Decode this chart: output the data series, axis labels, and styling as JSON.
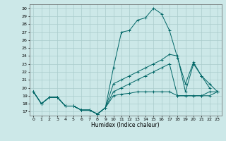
{
  "xlabel": "Humidex (Indice chaleur)",
  "bg_color": "#cce8e8",
  "line_color": "#006666",
  "grid_color": "#aacccc",
  "xlim": [
    -0.5,
    23.5
  ],
  "ylim": [
    16.5,
    30.5
  ],
  "xticks": [
    0,
    1,
    2,
    3,
    4,
    5,
    6,
    7,
    8,
    9,
    10,
    11,
    12,
    13,
    14,
    15,
    16,
    17,
    18,
    19,
    20,
    21,
    22,
    23
  ],
  "yticks": [
    17,
    18,
    19,
    20,
    21,
    22,
    23,
    24,
    25,
    26,
    27,
    28,
    29,
    30
  ],
  "lines": [
    {
      "x": [
        0,
        1,
        2,
        3,
        4,
        5,
        6,
        7,
        8,
        9,
        10,
        11,
        12,
        13,
        14,
        15,
        16,
        17,
        18,
        19,
        20,
        21,
        22
      ],
      "y": [
        19.5,
        18.0,
        18.8,
        18.8,
        17.7,
        17.7,
        17.2,
        17.2,
        16.7,
        17.5,
        22.5,
        27.0,
        27.2,
        28.5,
        28.8,
        30.0,
        29.3,
        27.2,
        23.8,
        20.5,
        23.2,
        21.5,
        20.0
      ]
    },
    {
      "x": [
        0,
        1,
        2,
        3,
        4,
        5,
        6,
        7,
        8,
        9,
        10,
        11,
        12,
        13,
        14,
        15,
        16,
        17,
        18,
        19,
        20,
        21,
        22,
        23
      ],
      "y": [
        19.5,
        18.0,
        18.8,
        18.8,
        17.7,
        17.7,
        17.2,
        17.2,
        16.7,
        17.5,
        20.5,
        21.0,
        21.5,
        22.0,
        22.5,
        23.0,
        23.5,
        24.2,
        24.0,
        19.5,
        23.0,
        21.5,
        20.5,
        19.5
      ]
    },
    {
      "x": [
        0,
        1,
        2,
        3,
        4,
        5,
        6,
        7,
        8,
        9,
        10,
        11,
        12,
        13,
        14,
        15,
        16,
        17,
        18,
        19,
        20,
        21,
        22,
        23
      ],
      "y": [
        19.5,
        18.0,
        18.8,
        18.8,
        17.7,
        17.7,
        17.2,
        17.2,
        16.7,
        17.5,
        19.5,
        20.0,
        20.5,
        21.0,
        21.5,
        22.0,
        22.5,
        23.0,
        19.0,
        19.0,
        19.0,
        19.0,
        19.0,
        19.5
      ]
    },
    {
      "x": [
        0,
        1,
        2,
        3,
        4,
        5,
        6,
        7,
        8,
        9,
        10,
        11,
        12,
        13,
        14,
        15,
        16,
        17,
        18,
        19,
        20,
        21,
        22,
        23
      ],
      "y": [
        19.5,
        18.0,
        18.8,
        18.8,
        17.7,
        17.7,
        17.2,
        17.2,
        16.7,
        17.5,
        19.0,
        19.2,
        19.3,
        19.5,
        19.5,
        19.5,
        19.5,
        19.5,
        19.0,
        19.0,
        19.0,
        19.0,
        19.5,
        19.5
      ]
    }
  ]
}
